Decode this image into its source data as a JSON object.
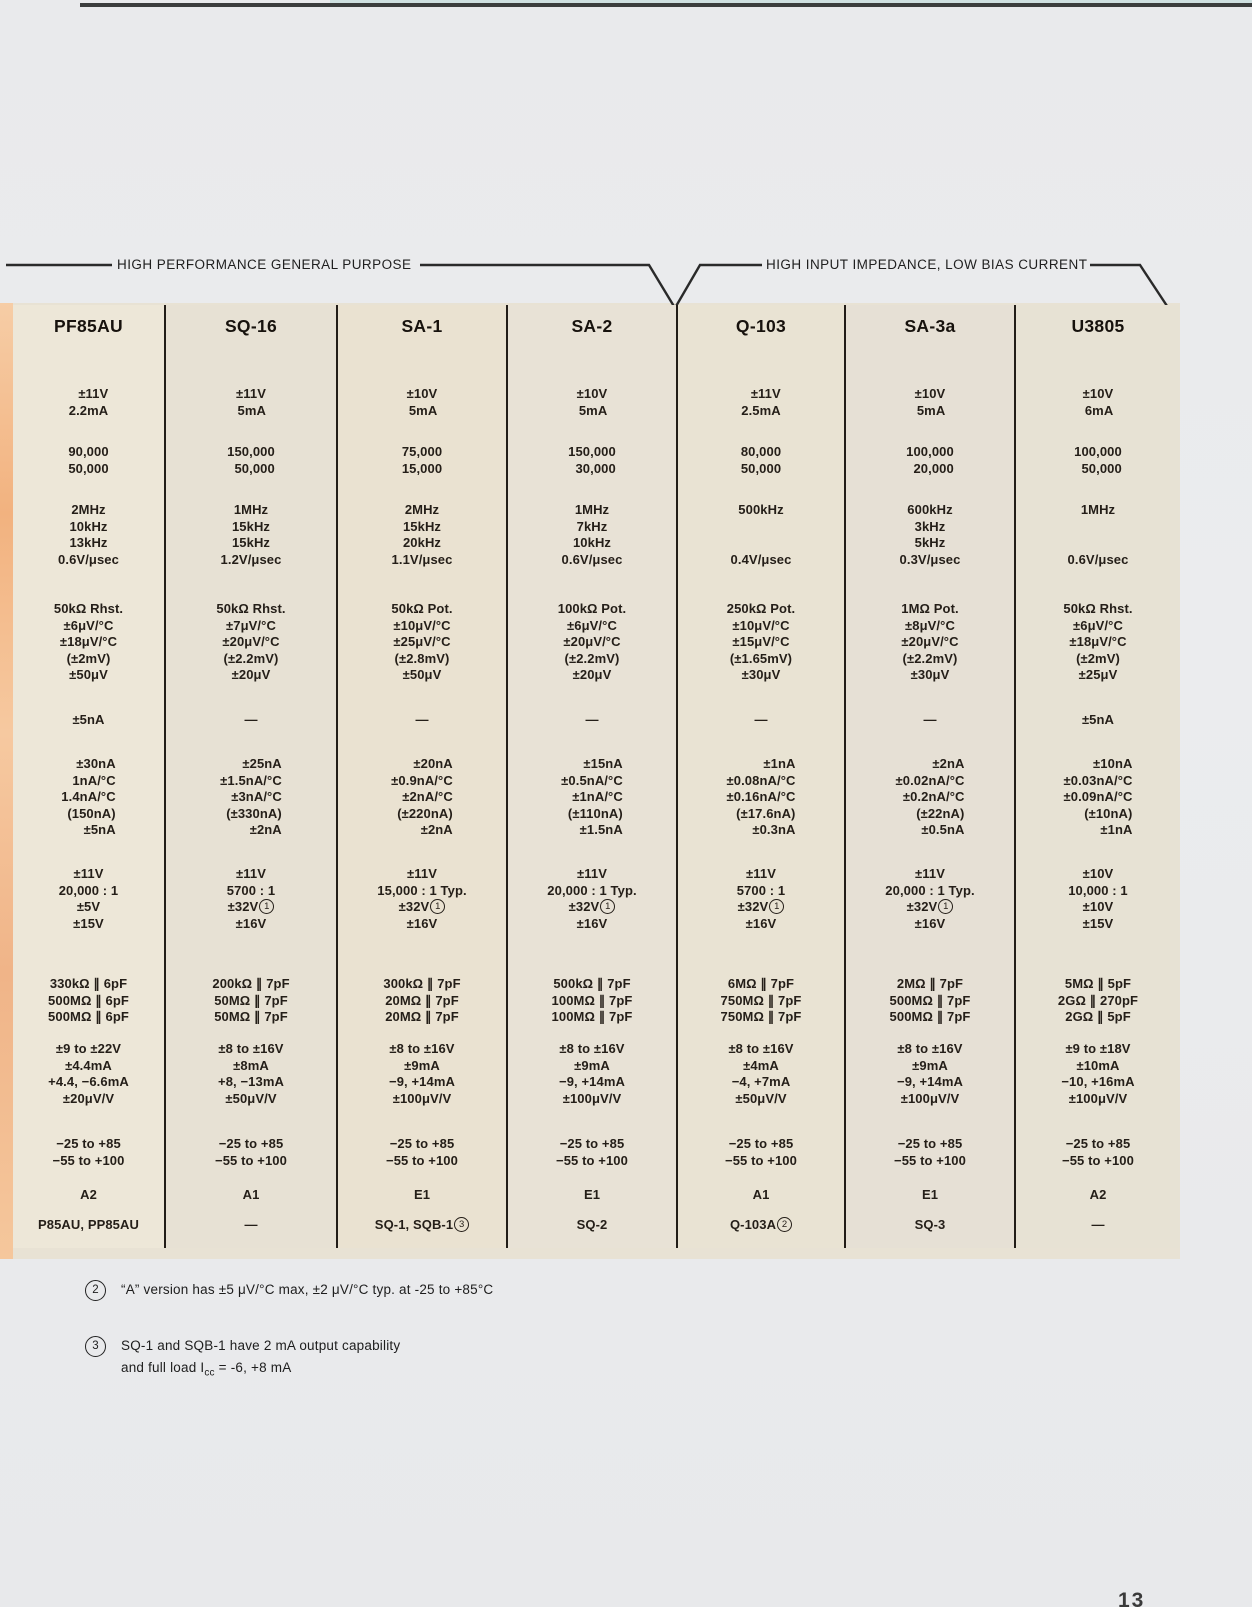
{
  "groups": {
    "left_label": "HIGH PERFORMANCE GENERAL PURPOSE",
    "right_label": "HIGH INPUT IMPEDANCE, LOW BIAS CURRENT"
  },
  "table": {
    "columns": [
      "PF85AU",
      "SQ-16",
      "SA-1",
      "SA-2",
      "Q-103",
      "SA-3a",
      "U3805"
    ],
    "rows": [
      {
        "cells": [
          [
            "±11V",
            "2.2mA"
          ],
          [
            "±11V",
            "5mA"
          ],
          [
            "±10V",
            "5mA"
          ],
          [
            "±10V",
            "5mA"
          ],
          [
            "±11V",
            "2.5mA"
          ],
          [
            "±10V",
            "5mA"
          ],
          [
            "±10V",
            "6mA"
          ]
        ]
      },
      {
        "cells": [
          [
            "90,000",
            "50,000"
          ],
          [
            "150,000",
            "50,000"
          ],
          [
            "75,000",
            "15,000"
          ],
          [
            "150,000",
            "30,000"
          ],
          [
            "80,000",
            "50,000"
          ],
          [
            "100,000",
            "20,000"
          ],
          [
            "100,000",
            "50,000"
          ]
        ]
      },
      {
        "cells": [
          [
            "2MHz",
            "10kHz",
            "13kHz",
            "0.6V/μsec"
          ],
          [
            "1MHz",
            "15kHz",
            "15kHz",
            "1.2V/μsec"
          ],
          [
            "2MHz",
            "15kHz",
            "20kHz",
            "1.1V/μsec"
          ],
          [
            "1MHz",
            "7kHz",
            "10kHz",
            "0.6V/μsec"
          ],
          [
            "500kHz",
            "",
            "",
            "0.4V/μsec"
          ],
          [
            "600kHz",
            "3kHz",
            "5kHz",
            "0.3V/μsec"
          ],
          [
            "1MHz",
            "",
            "",
            "0.6V/μsec"
          ]
        ]
      },
      {
        "cells": [
          [
            "50kΩ Rhst.",
            "±6μV/°C",
            "±18μV/°C",
            "(±2mV)",
            "±50μV"
          ],
          [
            "50kΩ Rhst.",
            "±7μV/°C",
            "±20μV/°C",
            "(±2.2mV)",
            "±20μV"
          ],
          [
            "50kΩ Pot.",
            "±10μV/°C",
            "±25μV/°C",
            "(±2.8mV)",
            "±50μV"
          ],
          [
            "100kΩ Pot.",
            "±6μV/°C",
            "±20μV/°C",
            "(±2.2mV)",
            "±20μV"
          ],
          [
            "250kΩ Pot.",
            "±10μV/°C",
            "±15μV/°C",
            "(±1.65mV)",
            "±30μV"
          ],
          [
            "1MΩ Pot.",
            "±8μV/°C",
            "±20μV/°C",
            "(±2.2mV)",
            "±30μV"
          ],
          [
            "50kΩ Rhst.",
            "±6μV/°C",
            "±18μV/°C",
            "(±2mV)",
            "±25μV"
          ]
        ]
      },
      {
        "cells": [
          [
            "±5nA"
          ],
          [
            "—"
          ],
          [
            "—"
          ],
          [
            "—"
          ],
          [
            "—"
          ],
          [
            "—"
          ],
          [
            "±5nA"
          ]
        ]
      },
      {
        "cells": [
          [
            "±30nA",
            "1nA/°C",
            "1.4nA/°C",
            "(150nA)",
            "±5nA"
          ],
          [
            "±25nA",
            "±1.5nA/°C",
            "±3nA/°C",
            "(±330nA)",
            "±2nA"
          ],
          [
            "±20nA",
            "±0.9nA/°C",
            "±2nA/°C",
            "(±220nA)",
            "±2nA"
          ],
          [
            "±15nA",
            "±0.5nA/°C",
            "±1nA/°C",
            "(±110nA)",
            "±1.5nA"
          ],
          [
            "±1nA",
            "±0.08nA/°C",
            "±0.16nA/°C",
            "(±17.6nA)",
            "±0.3nA"
          ],
          [
            "±2nA",
            "±0.02nA/°C",
            "±0.2nA/°C",
            "(±22nA)",
            "±0.5nA"
          ],
          [
            "±10nA",
            "±0.03nA/°C",
            "±0.09nA/°C",
            "(±10nA)",
            "±1nA"
          ]
        ]
      },
      {
        "cells": [
          [
            "±11V",
            "20,000 : 1",
            "±5V",
            "±15V"
          ],
          [
            "±11V",
            "5700 : 1",
            "±32V①",
            "±16V"
          ],
          [
            "±11V",
            "15,000 : 1 Typ.",
            "±32V①",
            "±16V"
          ],
          [
            "±11V",
            "20,000 : 1 Typ.",
            "±32V①",
            "±16V"
          ],
          [
            "±11V",
            "5700 : 1",
            "±32V①",
            "±16V"
          ],
          [
            "±11V",
            "20,000 : 1 Typ.",
            "±32V①",
            "±16V"
          ],
          [
            "±10V",
            "10,000 : 1",
            "±10V",
            "±15V"
          ]
        ]
      },
      {
        "cells": [
          [
            "330kΩ ∥ 6pF",
            "500MΩ ∥ 6pF",
            "500MΩ ∥ 6pF"
          ],
          [
            "200kΩ ∥ 7pF",
            "50MΩ ∥ 7pF",
            "50MΩ ∥ 7pF"
          ],
          [
            "300kΩ ∥ 7pF",
            "20MΩ ∥ 7pF",
            "20MΩ ∥ 7pF"
          ],
          [
            "500kΩ ∥ 7pF",
            "100MΩ ∥ 7pF",
            "100MΩ ∥ 7pF"
          ],
          [
            "6MΩ ∥ 7pF",
            "750MΩ ∥ 7pF",
            "750MΩ ∥ 7pF"
          ],
          [
            "2MΩ ∥ 7pF",
            "500MΩ ∥ 7pF",
            "500MΩ ∥ 7pF"
          ],
          [
            "5MΩ ∥ 5pF",
            "2GΩ ∥ 270pF",
            "2GΩ ∥ 5pF"
          ]
        ]
      },
      {
        "cells": [
          [
            "±9 to ±22V",
            "±4.4mA",
            "+4.4, −6.6mA",
            "±20μV/V"
          ],
          [
            "±8 to ±16V",
            "±8mA",
            "+8, −13mA",
            "±50μV/V"
          ],
          [
            "±8 to ±16V",
            "±9mA",
            "−9, +14mA",
            "±100μV/V"
          ],
          [
            "±8 to ±16V",
            "±9mA",
            "−9, +14mA",
            "±100μV/V"
          ],
          [
            "±8 to ±16V",
            "±4mA",
            "−4, +7mA",
            "±50μV/V"
          ],
          [
            "±8 to ±16V",
            "±9mA",
            "−9, +14mA",
            "±100μV/V"
          ],
          [
            "±9 to ±18V",
            "±10mA",
            "−10, +16mA",
            "±100μV/V"
          ]
        ]
      },
      {
        "cells": [
          [
            "−25 to +85",
            "−55 to +100"
          ],
          [
            "−25 to +85",
            "−55 to +100"
          ],
          [
            "−25 to +85",
            "−55 to +100"
          ],
          [
            "−25 to +85",
            "−55 to +100"
          ],
          [
            "−25 to +85",
            "−55 to +100"
          ],
          [
            "−25 to +85",
            "−55 to +100"
          ],
          [
            "−25 to +85",
            "−55 to +100"
          ]
        ]
      },
      {
        "cells": [
          [
            "A2"
          ],
          [
            "A1"
          ],
          [
            "E1"
          ],
          [
            "E1"
          ],
          [
            "A1"
          ],
          [
            "E1"
          ],
          [
            "A2"
          ]
        ]
      },
      {
        "cells": [
          [
            "P85AU, PP85AU"
          ],
          [
            "—"
          ],
          [
            "SQ-1, SQB-1③"
          ],
          [
            "SQ-2"
          ],
          [
            "Q-103A②"
          ],
          [
            "SQ-3"
          ],
          [
            "—"
          ]
        ]
      }
    ]
  },
  "footnotes": [
    {
      "marker": "2",
      "lines": [
        "“A” version has ±5 μV/°C max, ±2 μV/°C typ. at -25 to +85°C"
      ]
    },
    {
      "marker": "3",
      "lines": [
        "SQ-1 and SQB-1 have 2 mA output capability",
        "and full load Icc = -6, +8 mA"
      ]
    }
  ],
  "page_number": "13"
}
